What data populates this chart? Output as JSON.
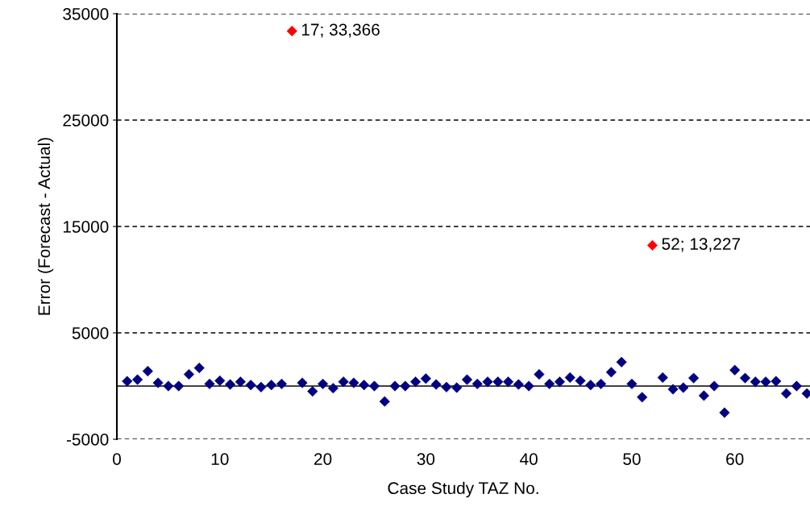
{
  "chart_data": {
    "type": "scatter",
    "xlabel": "Case Study TAZ No.",
    "ylabel": "Error (Forecast - Actual)",
    "x": [
      1,
      2,
      3,
      4,
      5,
      6,
      7,
      8,
      9,
      10,
      11,
      12,
      13,
      14,
      15,
      16,
      17,
      18,
      19,
      20,
      21,
      22,
      23,
      24,
      25,
      26,
      27,
      28,
      29,
      30,
      31,
      32,
      33,
      34,
      35,
      36,
      37,
      38,
      39,
      40,
      41,
      42,
      43,
      44,
      45,
      46,
      47,
      48,
      49,
      50,
      51,
      52,
      53,
      54,
      55,
      56,
      57,
      58,
      59,
      60,
      61,
      62,
      63,
      64,
      65,
      66,
      67
    ],
    "series": [
      {
        "values": [
          450,
          600,
          1400,
          300,
          0,
          0,
          1100,
          1700,
          200,
          500,
          150,
          400,
          100,
          -100,
          100,
          200,
          33366,
          300,
          -500,
          200,
          -200,
          400,
          300,
          100,
          0,
          -1450,
          0,
          0,
          400,
          700,
          150,
          -100,
          -150,
          600,
          200,
          400,
          400,
          400,
          150,
          0,
          1100,
          200,
          400,
          800,
          500,
          100,
          200,
          1300,
          2250,
          200,
          -1050,
          13227,
          800,
          -300,
          -150,
          750,
          -900,
          0,
          -2500,
          1500,
          750,
          400,
          400,
          450,
          -700,
          0,
          -700
        ],
        "colors": [
          "#000080",
          "#000080",
          "#000080",
          "#000080",
          "#000080",
          "#000080",
          "#000080",
          "#000080",
          "#000080",
          "#000080",
          "#000080",
          "#000080",
          "#000080",
          "#000080",
          "#000080",
          "#000080",
          "#ff0000",
          "#000080",
          "#000080",
          "#000080",
          "#000080",
          "#000080",
          "#000080",
          "#000080",
          "#000080",
          "#000080",
          "#000080",
          "#000080",
          "#000080",
          "#000080",
          "#000080",
          "#000080",
          "#000080",
          "#000080",
          "#000080",
          "#000080",
          "#000080",
          "#000080",
          "#000080",
          "#000080",
          "#000080",
          "#000080",
          "#000080",
          "#000080",
          "#000080",
          "#000080",
          "#000080",
          "#000080",
          "#000080",
          "#000080",
          "#000080",
          "#ff0000",
          "#000080",
          "#000080",
          "#000080",
          "#000080",
          "#000080",
          "#000080",
          "#000080",
          "#000080",
          "#000080",
          "#000080",
          "#000080",
          "#000080",
          "#000080",
          "#000080",
          "#000080"
        ]
      }
    ],
    "annotations": [
      {
        "text": "17; 33,366",
        "x": 17,
        "y": 33366
      },
      {
        "text": "52; 13,227",
        "x": 52,
        "y": 13227
      }
    ],
    "xlim": [
      0,
      67.3
    ],
    "xticks": [
      0,
      10,
      20,
      30,
      40,
      50,
      60
    ],
    "ylim": [
      -5000,
      35000
    ],
    "yticks": [
      -5000,
      5000,
      15000,
      25000,
      35000
    ],
    "ref_lines": [
      {
        "axis": "y",
        "value": 0
      }
    ],
    "grid": "y",
    "marker": "diamond",
    "legend": false
  }
}
